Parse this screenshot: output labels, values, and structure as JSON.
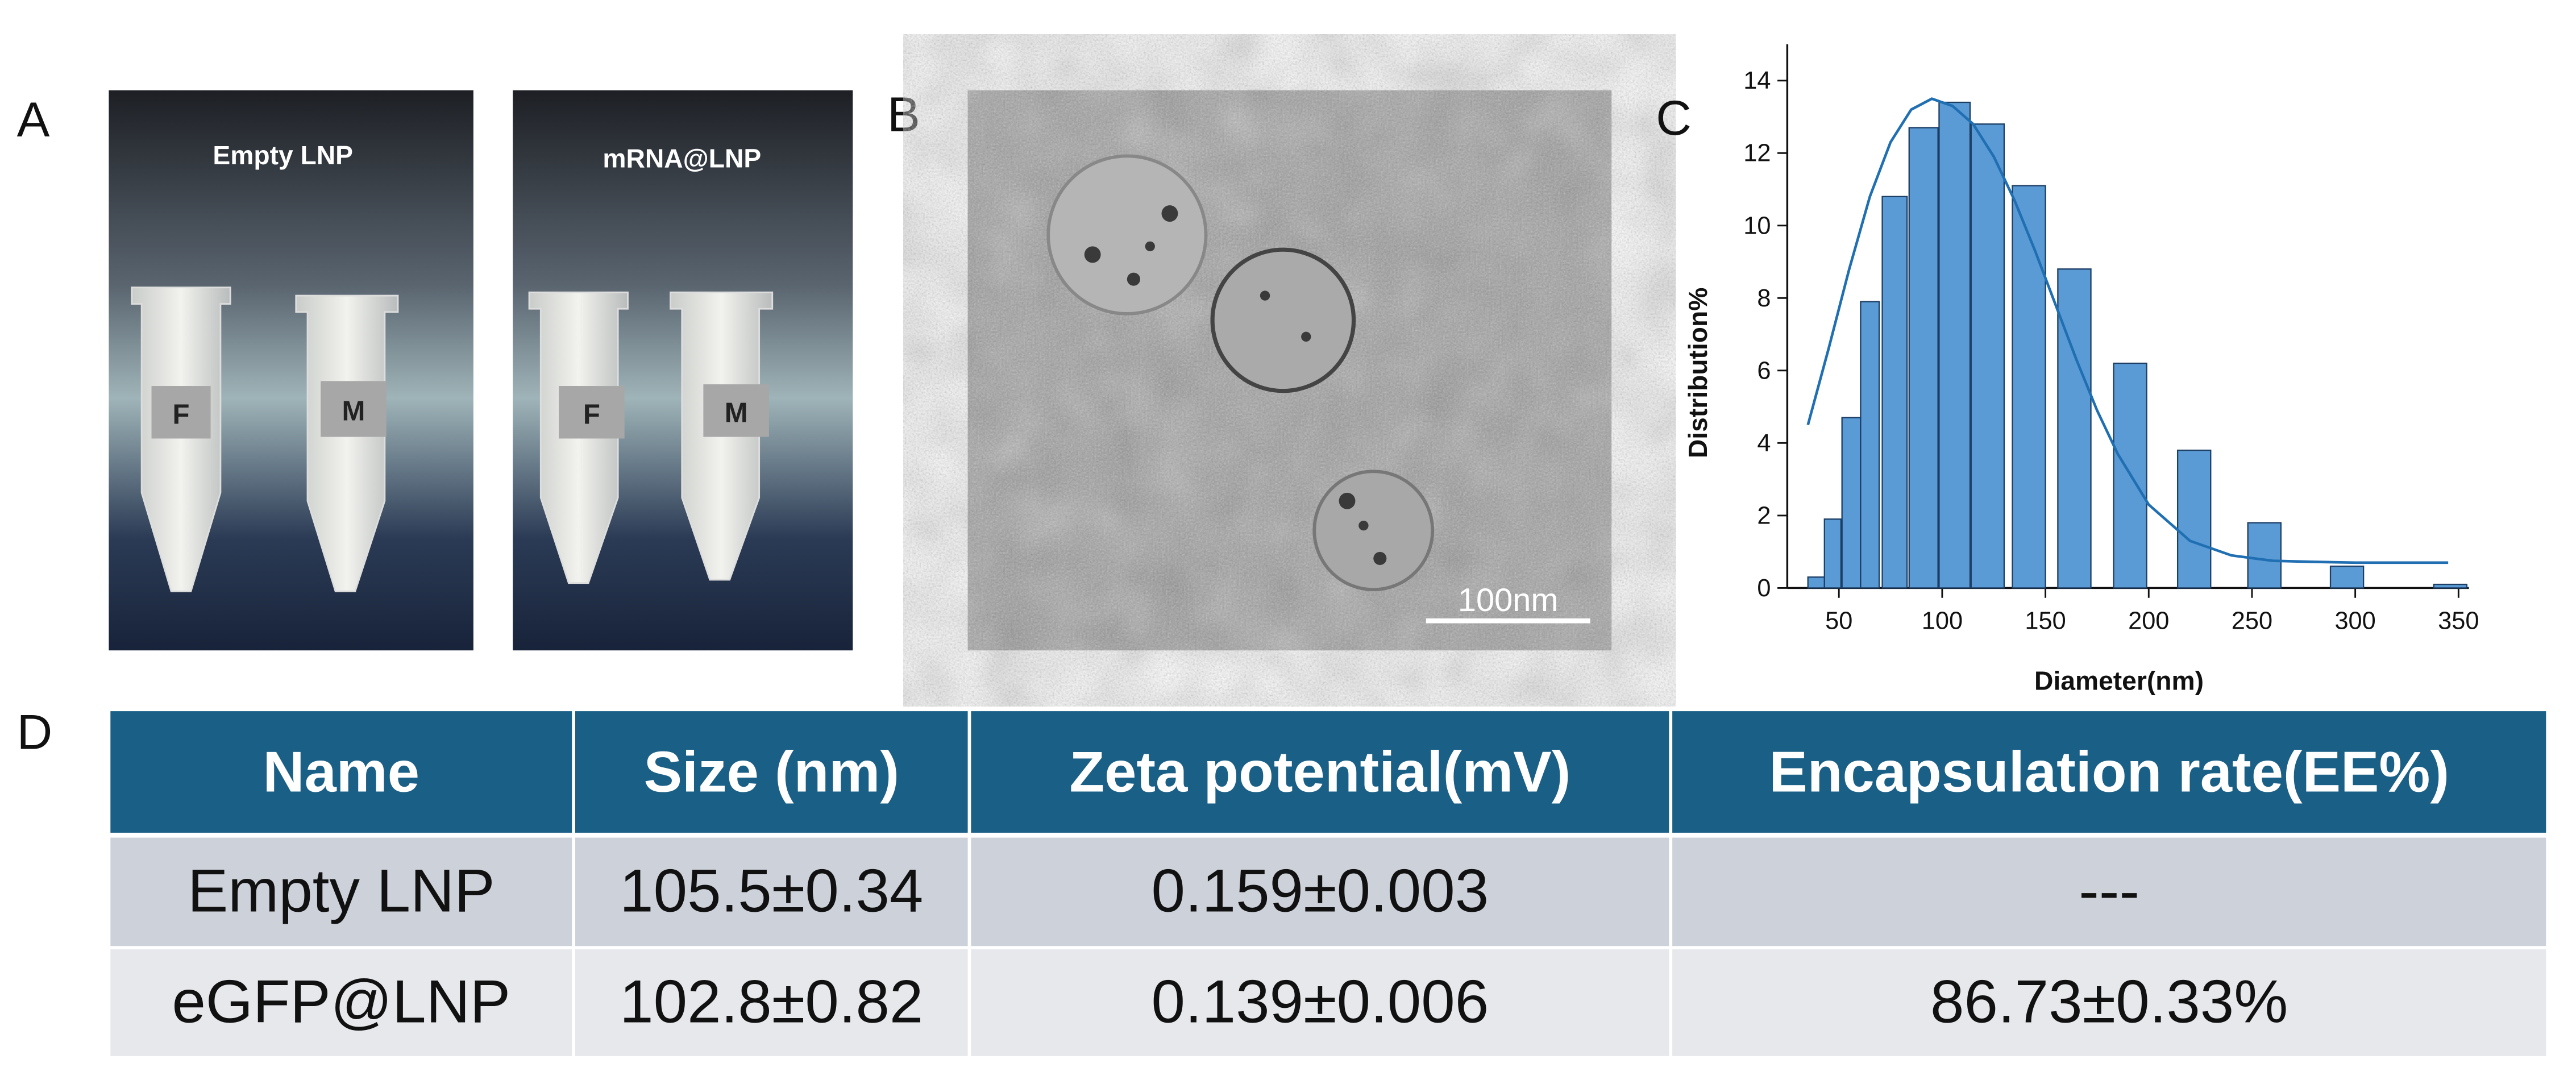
{
  "panels": {
    "a": "A",
    "b": "B",
    "c": "C",
    "d": "D"
  },
  "photo": {
    "left_title": "Empty LNP",
    "right_title": "mRNA@LNP",
    "tube_labels": [
      "F",
      "M",
      "F",
      "M"
    ]
  },
  "tem": {
    "scale_bar": "100nm"
  },
  "chart_data": {
    "type": "bar",
    "x_label": "Diameter(nm)",
    "y_label": "Distribution%",
    "xlim": [
      25,
      355
    ],
    "ylim": [
      0,
      15
    ],
    "xticks": [
      50,
      100,
      150,
      200,
      250,
      300,
      350
    ],
    "yticks": [
      0,
      2,
      4,
      6,
      8,
      10,
      12,
      14
    ],
    "series": [
      {
        "type": "bar",
        "color": "#5b9bd5",
        "x": [
          39,
          47,
          56,
          65,
          77,
          91,
          106,
          122,
          142,
          164,
          191,
          222,
          256,
          296,
          346
        ],
        "values": [
          0.3,
          1.9,
          4.7,
          7.9,
          10.8,
          12.7,
          13.4,
          12.8,
          11.1,
          8.8,
          6.2,
          3.8,
          1.8,
          0.6,
          0.1
        ]
      },
      {
        "type": "line",
        "color": "#1f6fb2",
        "x": [
          35,
          45,
          55,
          65,
          75,
          85,
          95,
          105,
          115,
          125,
          135,
          145,
          155,
          165,
          175,
          185,
          200,
          220,
          240,
          260,
          280,
          300,
          320,
          345
        ],
        "values": [
          4.5,
          6.6,
          8.8,
          10.8,
          12.3,
          13.2,
          13.5,
          13.3,
          12.8,
          11.9,
          10.7,
          9.3,
          7.8,
          6.3,
          4.9,
          3.7,
          2.3,
          1.3,
          0.9,
          0.75,
          0.72,
          0.7,
          0.7,
          0.7
        ]
      }
    ]
  },
  "table": {
    "header": [
      "Name",
      "Size (nm)",
      "Zeta potential(mV)",
      "Encapsulation rate(EE%)"
    ],
    "rows": [
      [
        "Empty LNP",
        "105.5±0.34",
        "0.159±0.003",
        "---"
      ],
      [
        "eGFP@LNP",
        "102.8±0.82",
        "0.139±0.006",
        "86.73±0.33%"
      ]
    ]
  }
}
